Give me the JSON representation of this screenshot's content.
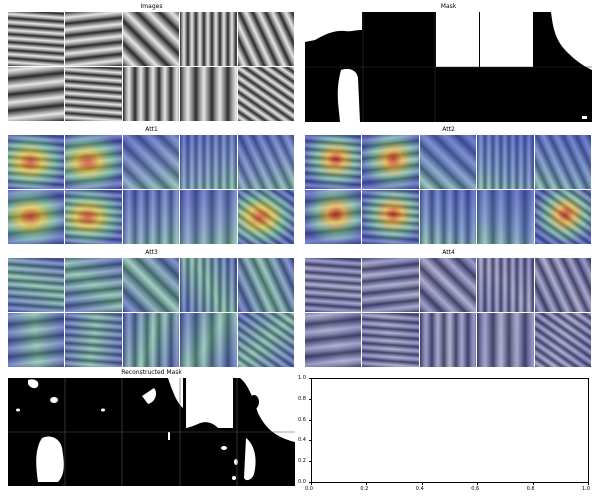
{
  "panels": {
    "images": {
      "title": "Images"
    },
    "mask": {
      "title": "Mask"
    },
    "att1": {
      "title": "Att1"
    },
    "att2": {
      "title": "Att2"
    },
    "att3": {
      "title": "Att3"
    },
    "att4": {
      "title": "Att4"
    },
    "reconstructed": {
      "title": "Reconstructed Mask"
    }
  },
  "empty_axes": {
    "xticks": [
      "0.0",
      "0.2",
      "0.4",
      "0.6",
      "0.8",
      "1.0"
    ],
    "yticks": [
      "0.0",
      "0.2",
      "0.4",
      "0.6",
      "0.8",
      "1.0"
    ]
  },
  "colors": {
    "seismic_gray": "#808080",
    "att_low": "#3b4cc0",
    "att_mid": "#5fb7a0",
    "att_high": "#d6402a",
    "mask_fg": "#ffffff",
    "mask_bg": "#000000"
  }
}
